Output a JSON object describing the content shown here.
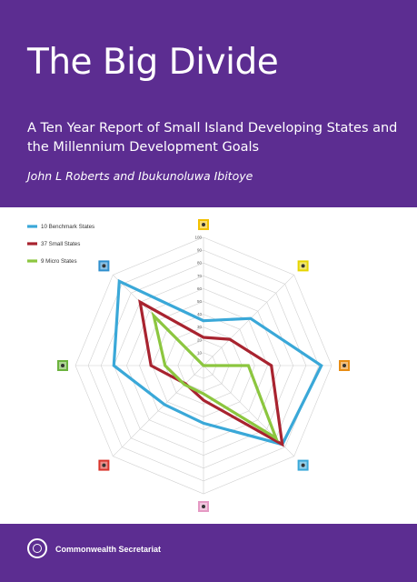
{
  "cover": {
    "title": "The Big Divide",
    "subtitle": "A Ten Year Report of Small Island Developing States and the Millennium Development Goals",
    "authors": "John L Roberts and Ibukunoluwa Ibitoye",
    "publisher": "Commonwealth Secretariat"
  },
  "colors": {
    "background": "#5c2d91",
    "text": "#ffffff"
  },
  "chart_data": {
    "type": "radar",
    "title": "",
    "scale": {
      "min": 0,
      "max": 100,
      "step": 10
    },
    "tick_labels": [
      "10",
      "20",
      "30",
      "40",
      "50",
      "60",
      "70",
      "80",
      "90",
      "100"
    ],
    "axes": [
      {
        "icon": "goal-1-icon",
        "color": "#f2c000"
      },
      {
        "icon": "goal-2-icon",
        "color": "#e6d400"
      },
      {
        "icon": "goal-3-icon",
        "color": "#e88d14"
      },
      {
        "icon": "goal-4-icon",
        "color": "#3aa8d8"
      },
      {
        "icon": "goal-5-icon",
        "color": "#e59ac4"
      },
      {
        "icon": "goal-6-icon",
        "color": "#d9342b"
      },
      {
        "icon": "goal-7-icon",
        "color": "#6cb33e"
      },
      {
        "icon": "goal-8-icon",
        "color": "#2f8fce"
      }
    ],
    "legend_position": "top-left",
    "series": [
      {
        "name": "10 Benchmark States",
        "color": "#3aa8d8",
        "values": [
          35,
          52,
          92,
          87,
          45,
          43,
          70,
          93
        ]
      },
      {
        "name": "37 Small States",
        "color": "#a8232f",
        "values": [
          22,
          29,
          53,
          87,
          27,
          20,
          41,
          70
        ]
      },
      {
        "name": "9 Micro States",
        "color": "#8cc63f",
        "values": [
          0,
          0,
          35,
          80,
          22,
          21,
          30,
          55
        ]
      }
    ]
  }
}
